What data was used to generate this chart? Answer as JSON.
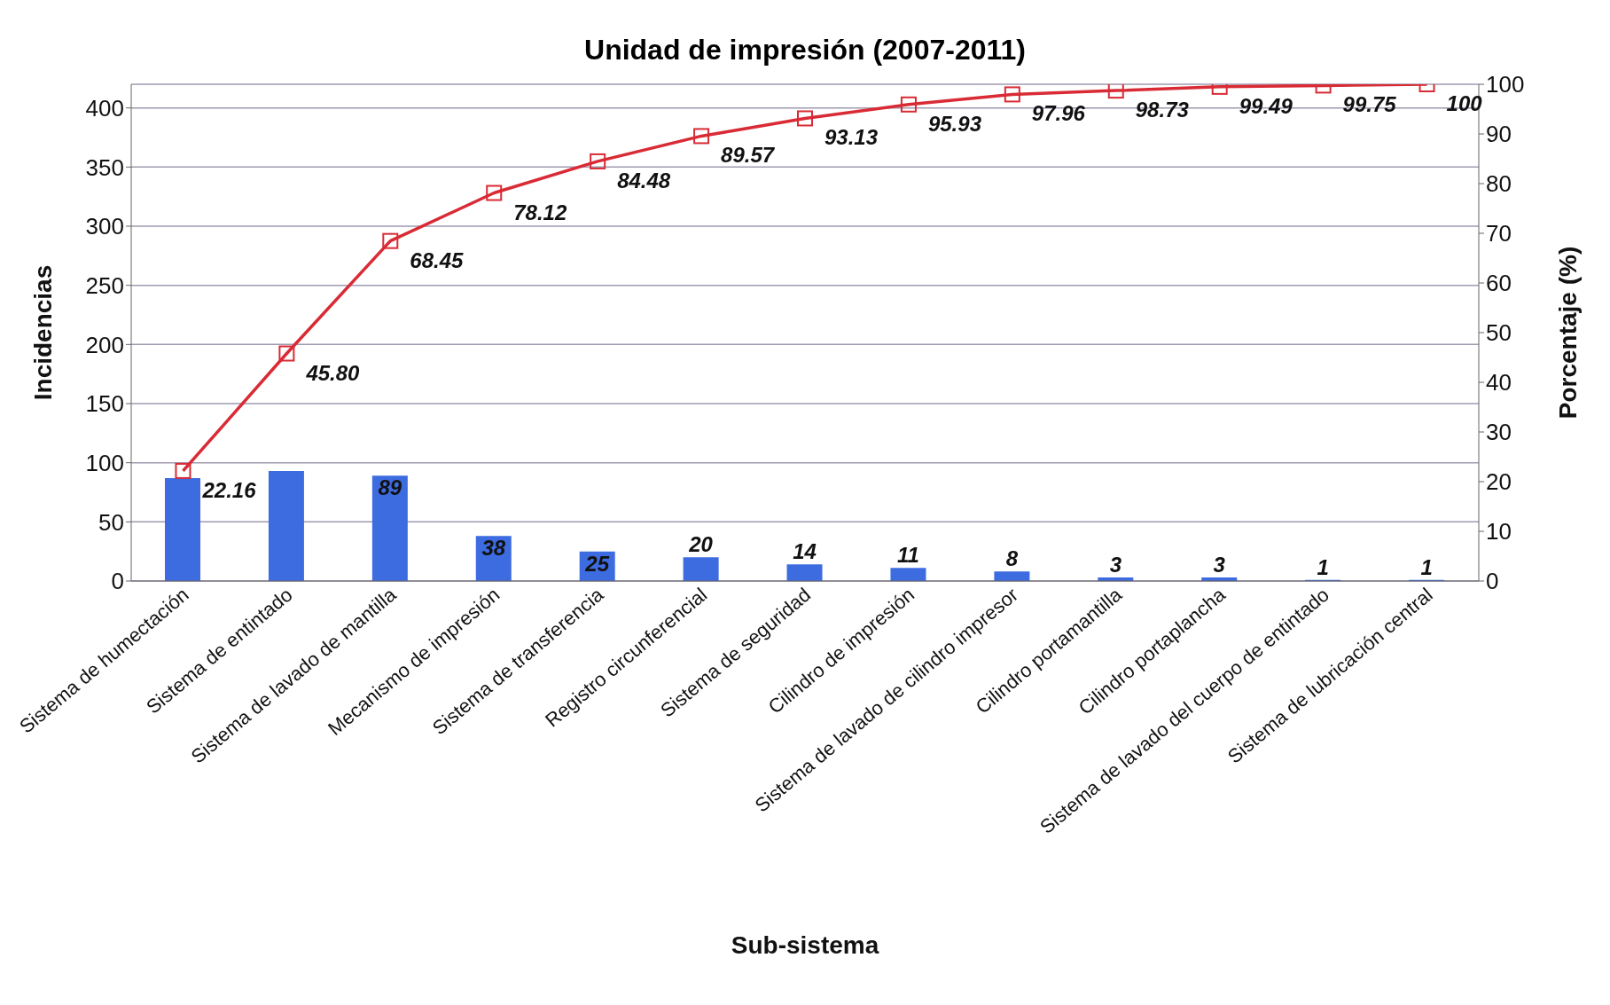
{
  "chart_data": {
    "type": "bar",
    "title": "Unidad de impresión (2007-2011)",
    "xlabel": "Sub-sistema",
    "ylabel": "Incidencias",
    "y2label": "Porcentaje (%)",
    "categories": [
      "Sistema de humectación",
      "Sistema de entintado",
      "Sistema de lavado de mantilla",
      "Mecanismo de impresión",
      "Sistema de transferencia",
      "Registro circunferencial",
      "Sistema de seguridad",
      "Cilindro de impresión",
      "Sistema de lavado de cilindro impresor",
      "Cilindro portamantilla",
      "Cilindro portaplancha",
      "Sistema de lavado del cuerpo de entintado",
      "Sistema de lubricación central"
    ],
    "series": [
      {
        "color": "#3d6be0",
        "values": [
          87,
          93,
          89,
          38,
          25,
          20,
          14,
          11,
          8,
          3,
          3,
          1,
          1
        ],
        "value_labels": [
          null,
          null,
          "89",
          "38",
          "25",
          "20",
          "14",
          "11",
          "8",
          "3",
          "3",
          "1",
          "1"
        ]
      },
      {
        "type": "line",
        "axis": "y2",
        "color": "#d92b35",
        "marker": "square",
        "values": [
          22.16,
          45.8,
          68.45,
          78.12,
          84.48,
          89.57,
          93.13,
          95.93,
          97.96,
          98.73,
          99.49,
          99.75,
          100
        ],
        "value_labels": [
          "22.16",
          "45.80",
          "68.45",
          "78.12",
          "84.48",
          "89.57",
          "93.13",
          "95.93",
          "97.96",
          "98.73",
          "99.49",
          "99.75",
          "100"
        ]
      }
    ],
    "ylim": [
      0,
      420
    ],
    "yticks": [
      0,
      50,
      100,
      150,
      200,
      250,
      300,
      350,
      400
    ],
    "y2lim": [
      0,
      100
    ],
    "y2ticks": [
      0,
      10,
      20,
      30,
      40,
      50,
      60,
      70,
      80,
      90,
      100
    ],
    "grid": "y",
    "legend": false
  }
}
